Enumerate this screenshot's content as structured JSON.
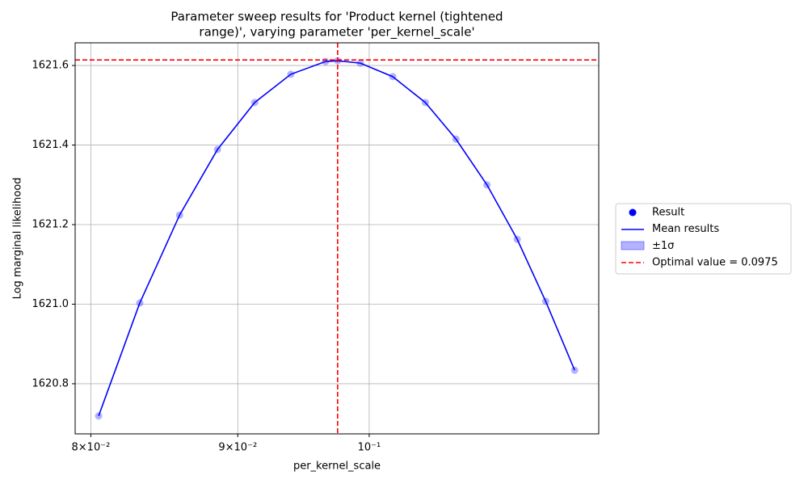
{
  "chart_data": {
    "type": "line",
    "title": [
      "Parameter sweep results for 'Product kernel (tightened",
      "range)', varying parameter 'per_kernel_scale'"
    ],
    "xlabel": "per_kernel_scale",
    "ylabel": "Log marginal likelihood",
    "x": [
      0.0805,
      0.0832,
      0.0859,
      0.08855,
      0.09123,
      0.09391,
      0.09656,
      0.0975,
      0.09929,
      0.1019,
      0.1046,
      0.1072,
      0.1099,
      0.1126,
      0.1152,
      0.1179
    ],
    "series": [
      {
        "name": "Result",
        "color": "#0000ff",
        "style": "scatter",
        "values": [
          1620.719,
          1621.003,
          1621.224,
          1621.389,
          1621.507,
          1621.578,
          1621.61,
          1621.612,
          1621.606,
          1621.572,
          1621.507,
          1621.415,
          1621.3,
          1621.163,
          1621.007,
          1620.834
        ]
      },
      {
        "name": "Mean results",
        "color": "#0000ff",
        "style": "line",
        "values": [
          1620.719,
          1621.003,
          1621.224,
          1621.389,
          1621.507,
          1621.578,
          1621.61,
          1621.612,
          1621.606,
          1621.572,
          1621.507,
          1621.415,
          1621.3,
          1621.163,
          1621.007,
          1620.834
        ]
      }
    ],
    "band": {
      "name": "±1σ",
      "color": "#0000ff"
    },
    "optimal": {
      "label": "Optimal value = 0.0975",
      "x": 0.0975,
      "y": 1621.614,
      "color": "#ff0000"
    },
    "xscale": "log",
    "xlim": [
      0.079,
      0.1202
    ],
    "ylim": [
      1620.674,
      1621.657
    ],
    "xticks": [
      {
        "value": 0.08,
        "label": "8×10⁻²"
      },
      {
        "value": 0.09,
        "label": "9×10⁻²"
      },
      {
        "value": 0.1,
        "label": "10⁻¹"
      }
    ],
    "yticks": [
      1620.8,
      {
        "value": 1621,
        "label": "1621.0"
      },
      1621.2,
      1621.4,
      1621.6
    ],
    "grid": true,
    "legend": "right"
  }
}
